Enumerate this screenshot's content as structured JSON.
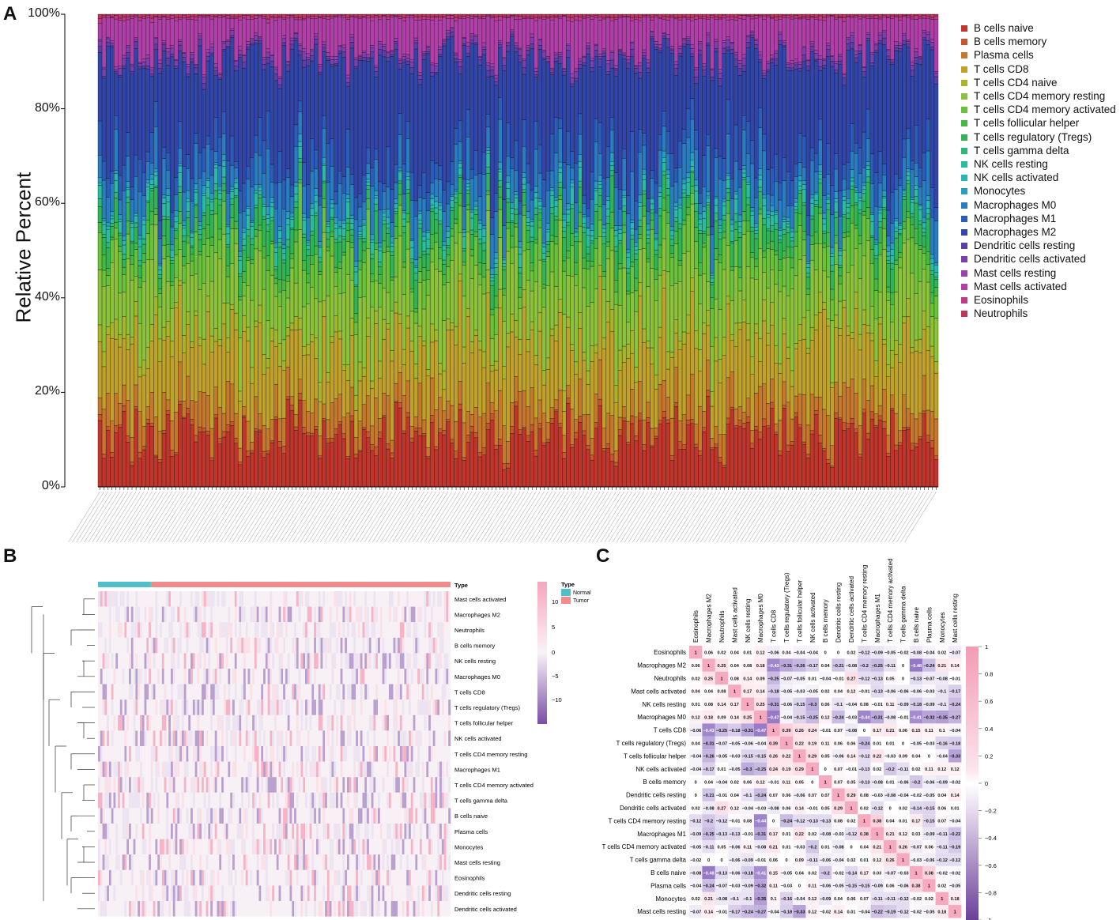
{
  "panels": {
    "a": "A",
    "b": "B",
    "c": "C"
  },
  "panel_a": {
    "ylabel": "Relative Percent",
    "yticks": [
      "0%",
      "20%",
      "40%",
      "60%",
      "80%",
      "100%"
    ],
    "legend": [
      {
        "name": "B cells naive",
        "color": "#c0362c"
      },
      {
        "name": "B cells memory",
        "color": "#c8562c"
      },
      {
        "name": "Plasma cells",
        "color": "#c6782c"
      },
      {
        "name": "T cells CD8",
        "color": "#c0a12c"
      },
      {
        "name": "T cells CD4 naive",
        "color": "#a8b52c"
      },
      {
        "name": "T cells CD4 memory resting",
        "color": "#8cc13c"
      },
      {
        "name": "T cells CD4 memory activated",
        "color": "#6ac23c"
      },
      {
        "name": "T cells follicular helper",
        "color": "#48b844"
      },
      {
        "name": "T cells regulatory (Tregs)",
        "color": "#30b455"
      },
      {
        "name": "T cells gamma delta",
        "color": "#2db878"
      },
      {
        "name": "NK cells resting",
        "color": "#2bbb9e"
      },
      {
        "name": "NK cells activated",
        "color": "#2bb6b6"
      },
      {
        "name": "Monocytes",
        "color": "#2b9cc1"
      },
      {
        "name": "Macrophages M0",
        "color": "#2b7dc1"
      },
      {
        "name": "Macrophages M1",
        "color": "#2b5cb8"
      },
      {
        "name": "Macrophages M2",
        "color": "#3245a8"
      },
      {
        "name": "Dendritic cells resting",
        "color": "#5a3fa8"
      },
      {
        "name": "Dendritic cells activated",
        "color": "#7d3fb0"
      },
      {
        "name": "Mast cells resting",
        "color": "#9b3fb0"
      },
      {
        "name": "Mast cells activated",
        "color": "#b03fa8"
      },
      {
        "name": "Eosinophils",
        "color": "#bf3a8a"
      },
      {
        "name": "Neutrophils",
        "color": "#c0355a"
      }
    ]
  },
  "panel_b": {
    "type_label": "Type",
    "legend_title": "Type",
    "legend_items": [
      {
        "name": "Normal",
        "color": "#4fc0c9"
      },
      {
        "name": "Tumor",
        "color": "#f28b8b"
      }
    ],
    "scale_ticks": [
      "10",
      "5",
      "0",
      "−5",
      "−10"
    ],
    "rows": [
      "Mast cells activated",
      "Macrophages M2",
      "Neutrophils",
      "B cells memory",
      "NK cells resting",
      "Macrophages M0",
      "T cells CD8",
      "T cells regulatory (Tregs)",
      "T cells follicular helper",
      "NK cells activated",
      "T cells CD4 memory resting",
      "Macrophages M1",
      "T cells CD4 memory activated",
      "T cells gamma delta",
      "B cells naive",
      "Plasma cells",
      "Monocytes",
      "Mast cells resting",
      "Eosinophils",
      "Dendritic cells resting",
      "Dendritic cells activated"
    ]
  },
  "chart_data": {
    "type": "heatmap",
    "labels": [
      "Eosinophils",
      "Macrophages M2",
      "Neutrophils",
      "Mast cells activated",
      "NK cells resting",
      "Macrophages M0",
      "T cells CD8",
      "T cells regulatory (Tregs)",
      "T cells follicular helper",
      "NK cells activated",
      "B cells memory",
      "Dendritic cells resting",
      "Dendritic cells activated",
      "T cells CD4 memory resting",
      "Macrophages M1",
      "T cells CD4 memory activated",
      "T cells gamma delta",
      "B cells naive",
      "Plasma cells",
      "Monocytes",
      "Mast cells resting"
    ],
    "matrix": [
      [
        "1",
        "0.06",
        "0.02",
        "0.04",
        "0.01",
        "0.12",
        "−0.06",
        "0.04",
        "−0.04",
        "−0.04",
        "0",
        "0",
        "0.02",
        "−0.12",
        "−0.09",
        "−0.05",
        "−0.02",
        "−0.08",
        "−0.04",
        "0.02",
        "−0.07"
      ],
      [
        "0.06",
        "1",
        "0.25",
        "0.04",
        "0.08",
        "0.18",
        "−0.43",
        "−0.31",
        "−0.26",
        "−0.17",
        "0.04",
        "−0.21",
        "−0.08",
        "−0.2",
        "−0.25",
        "−0.11",
        "0",
        "−0.48",
        "−0.24",
        "0.21",
        "0.14"
      ],
      [
        "0.02",
        "0.25",
        "1",
        "0.08",
        "0.14",
        "0.09",
        "−0.25",
        "−0.07",
        "−0.05",
        "0.01",
        "−0.04",
        "−0.01",
        "0.27",
        "−0.12",
        "−0.13",
        "0.05",
        "0",
        "−0.13",
        "−0.07",
        "−0.08",
        "−0.01"
      ],
      [
        "0.04",
        "0.04",
        "0.08",
        "1",
        "0.17",
        "0.14",
        "−0.18",
        "−0.05",
        "−0.03",
        "−0.05",
        "0.02",
        "0.04",
        "0.12",
        "−0.01",
        "−0.13",
        "−0.06",
        "−0.06",
        "−0.06",
        "−0.03",
        "−0.1",
        "−0.17"
      ],
      [
        "0.01",
        "0.08",
        "0.14",
        "0.17",
        "1",
        "0.25",
        "−0.31",
        "−0.06",
        "−0.15",
        "−0.3",
        "0.06",
        "−0.1",
        "−0.04",
        "0.08",
        "−0.01",
        "0.11",
        "−0.09",
        "−0.18",
        "−0.09",
        "−0.1",
        "−0.24"
      ],
      [
        "0.12",
        "0.18",
        "0.09",
        "0.14",
        "0.25",
        "1",
        "−0.47",
        "−0.04",
        "−0.15",
        "−0.25",
        "0.12",
        "−0.24",
        "−0.03",
        "−0.44",
        "−0.31",
        "−0.08",
        "−0.01",
        "−0.41",
        "−0.32",
        "−0.35",
        "−0.27"
      ],
      [
        "−0.06",
        "−0.43",
        "−0.25",
        "−0.18",
        "−0.31",
        "−0.47",
        "1",
        "0.39",
        "0.26",
        "0.24",
        "−0.01",
        "0.07",
        "−0.08",
        "0",
        "0.17",
        "0.21",
        "0.06",
        "0.15",
        "0.11",
        "0.1",
        "−0.04"
      ],
      [
        "0.04",
        "−0.31",
        "−0.07",
        "−0.05",
        "−0.06",
        "−0.04",
        "0.39",
        "1",
        "0.22",
        "0.19",
        "0.11",
        "0.06",
        "0.06",
        "−0.24",
        "0.01",
        "0.01",
        "0",
        "−0.05",
        "−0.03",
        "−0.16",
        "−0.18"
      ],
      [
        "−0.04",
        "−0.26",
        "−0.05",
        "−0.03",
        "−0.15",
        "−0.15",
        "0.26",
        "0.22",
        "1",
        "0.29",
        "0.05",
        "−0.06",
        "0.14",
        "−0.12",
        "0.22",
        "−0.03",
        "0.09",
        "0.04",
        "0",
        "−0.04",
        "−0.33"
      ],
      [
        "−0.04",
        "−0.17",
        "0.01",
        "−0.05",
        "−0.3",
        "−0.25",
        "0.24",
        "0.19",
        "0.29",
        "1",
        "0",
        "0.07",
        "−0.01",
        "−0.13",
        "0.02",
        "−0.2",
        "−0.11",
        "0.02",
        "0.11",
        "0.12",
        "0.12"
      ],
      [
        "0",
        "0.04",
        "−0.04",
        "0.02",
        "0.06",
        "0.12",
        "−0.01",
        "0.11",
        "0.05",
        "0",
        "1",
        "0.07",
        "0.05",
        "−0.13",
        "−0.08",
        "0.01",
        "−0.06",
        "−0.2",
        "−0.06",
        "−0.09",
        "−0.02"
      ],
      [
        "0",
        "−0.21",
        "−0.01",
        "0.04",
        "−0.1",
        "−0.24",
        "0.07",
        "0.06",
        "−0.06",
        "0.07",
        "0.07",
        "1",
        "0.29",
        "0.08",
        "−0.03",
        "−0.08",
        "−0.04",
        "−0.02",
        "−0.05",
        "0.04",
        "0.14"
      ],
      [
        "0.02",
        "−0.08",
        "0.27",
        "0.12",
        "−0.04",
        "−0.03",
        "−0.08",
        "0.06",
        "0.14",
        "−0.01",
        "0.05",
        "0.29",
        "1",
        "0.02",
        "−0.12",
        "0",
        "0.02",
        "−0.14",
        "−0.15",
        "0.06",
        "0.01"
      ],
      [
        "−0.12",
        "−0.2",
        "−0.12",
        "−0.01",
        "0.08",
        "−0.44",
        "0",
        "−0.24",
        "−0.12",
        "−0.13",
        "−0.13",
        "0.08",
        "0.02",
        "1",
        "0.38",
        "0.04",
        "0.01",
        "0.17",
        "−0.15",
        "0.07",
        "−0.04"
      ],
      [
        "−0.09",
        "−0.25",
        "−0.13",
        "−0.13",
        "−0.01",
        "−0.31",
        "0.17",
        "0.01",
        "0.22",
        "0.02",
        "−0.08",
        "−0.03",
        "−0.12",
        "0.38",
        "1",
        "0.21",
        "0.12",
        "0.03",
        "−0.09",
        "−0.11",
        "−0.22"
      ],
      [
        "−0.05",
        "−0.11",
        "0.05",
        "−0.06",
        "0.11",
        "−0.08",
        "0.21",
        "0.01",
        "−0.03",
        "−0.2",
        "0.01",
        "−0.08",
        "0",
        "0.04",
        "0.21",
        "1",
        "0.26",
        "−0.07",
        "0.06",
        "−0.11",
        "−0.19"
      ],
      [
        "−0.02",
        "0",
        "0",
        "−0.06",
        "−0.09",
        "−0.01",
        "0.06",
        "0",
        "0.09",
        "−0.11",
        "−0.06",
        "−0.04",
        "0.02",
        "0.01",
        "0.12",
        "0.26",
        "1",
        "−0.03",
        "−0.06",
        "−0.12",
        "−0.12"
      ],
      [
        "−0.08",
        "−0.48",
        "−0.13",
        "−0.06",
        "−0.18",
        "−0.41",
        "0.15",
        "−0.05",
        "0.04",
        "0.02",
        "−0.2",
        "−0.02",
        "−0.14",
        "0.17",
        "0.03",
        "−0.07",
        "−0.03",
        "1",
        "0.38",
        "−0.02",
        "−0.02"
      ],
      [
        "−0.04",
        "−0.24",
        "−0.07",
        "−0.03",
        "−0.09",
        "−0.32",
        "0.11",
        "−0.03",
        "0",
        "0.11",
        "−0.06",
        "−0.05",
        "−0.15",
        "−0.15",
        "−0.09",
        "0.06",
        "−0.06",
        "0.38",
        "1",
        "0.02",
        "−0.05"
      ],
      [
        "0.02",
        "0.21",
        "−0.08",
        "−0.1",
        "−0.1",
        "−0.35",
        "0.1",
        "−0.16",
        "−0.04",
        "0.12",
        "−0.09",
        "0.04",
        "0.06",
        "0.07",
        "−0.11",
        "−0.11",
        "−0.12",
        "−0.02",
        "0.02",
        "1",
        "0.18"
      ],
      [
        "−0.07",
        "0.14",
        "−0.01",
        "−0.17",
        "−0.24",
        "−0.27",
        "−0.04",
        "−0.18",
        "−0.33",
        "0.12",
        "−0.02",
        "0.14",
        "0.01",
        "−0.04",
        "−0.22",
        "−0.19",
        "−0.12",
        "−0.02",
        "−0.05",
        "0.18",
        "1"
      ]
    ],
    "scale_ticks": [
      "1",
      "0.8",
      "0.6",
      "0.4",
      "0.2",
      "0",
      "−0.2",
      "−0.4",
      "−0.6",
      "−0.8",
      "−1"
    ]
  }
}
